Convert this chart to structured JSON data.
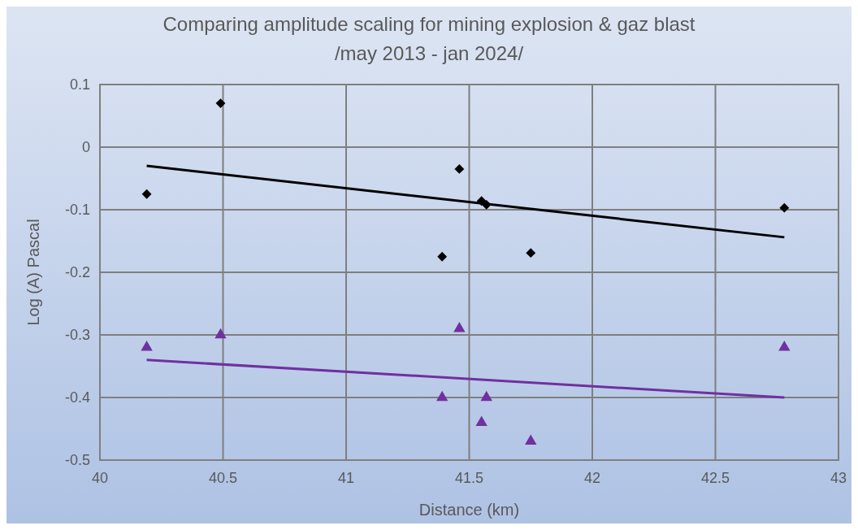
{
  "chart_data": {
    "type": "scatter",
    "title": "Comparing amplitude scaling for mining explosion & gaz blast",
    "subtitle": "/may 2013 - jan 2024/",
    "xlabel": "Distance (km)",
    "ylabel": "Log (A) Pascal",
    "xlim": [
      40,
      43
    ],
    "xticks": [
      40,
      40.5,
      41,
      41.5,
      42,
      42.5,
      43
    ],
    "ylim": [
      -0.5,
      0.1
    ],
    "yticks": [
      -0.5,
      -0.4,
      -0.3,
      -0.2,
      -0.1,
      0,
      0.1
    ],
    "grid": true,
    "series": [
      {
        "marker": "diamond",
        "color": "#000000",
        "x": [
          40.19,
          40.49,
          41.46,
          41.39,
          41.55,
          41.57,
          41.75,
          42.78
        ],
        "values": [
          -0.075,
          0.07,
          -0.035,
          -0.175,
          -0.086,
          -0.092,
          -0.169,
          -0.097
        ]
      },
      {
        "marker": "triangle",
        "color": "#7030a0",
        "x": [
          40.19,
          40.49,
          41.46,
          41.39,
          41.57,
          41.55,
          41.75,
          42.78
        ],
        "values": [
          -0.32,
          -0.3,
          -0.29,
          -0.4,
          -0.4,
          -0.44,
          -0.47,
          -0.32
        ]
      },
      {
        "type": "line",
        "marker": "none",
        "color": "#000000",
        "x": [
          40.19,
          42.78
        ],
        "values": [
          -0.03,
          -0.144
        ]
      },
      {
        "type": "line",
        "marker": "none",
        "color": "#7030a0",
        "x": [
          40.19,
          42.78
        ],
        "values": [
          -0.34,
          -0.4
        ]
      }
    ]
  }
}
